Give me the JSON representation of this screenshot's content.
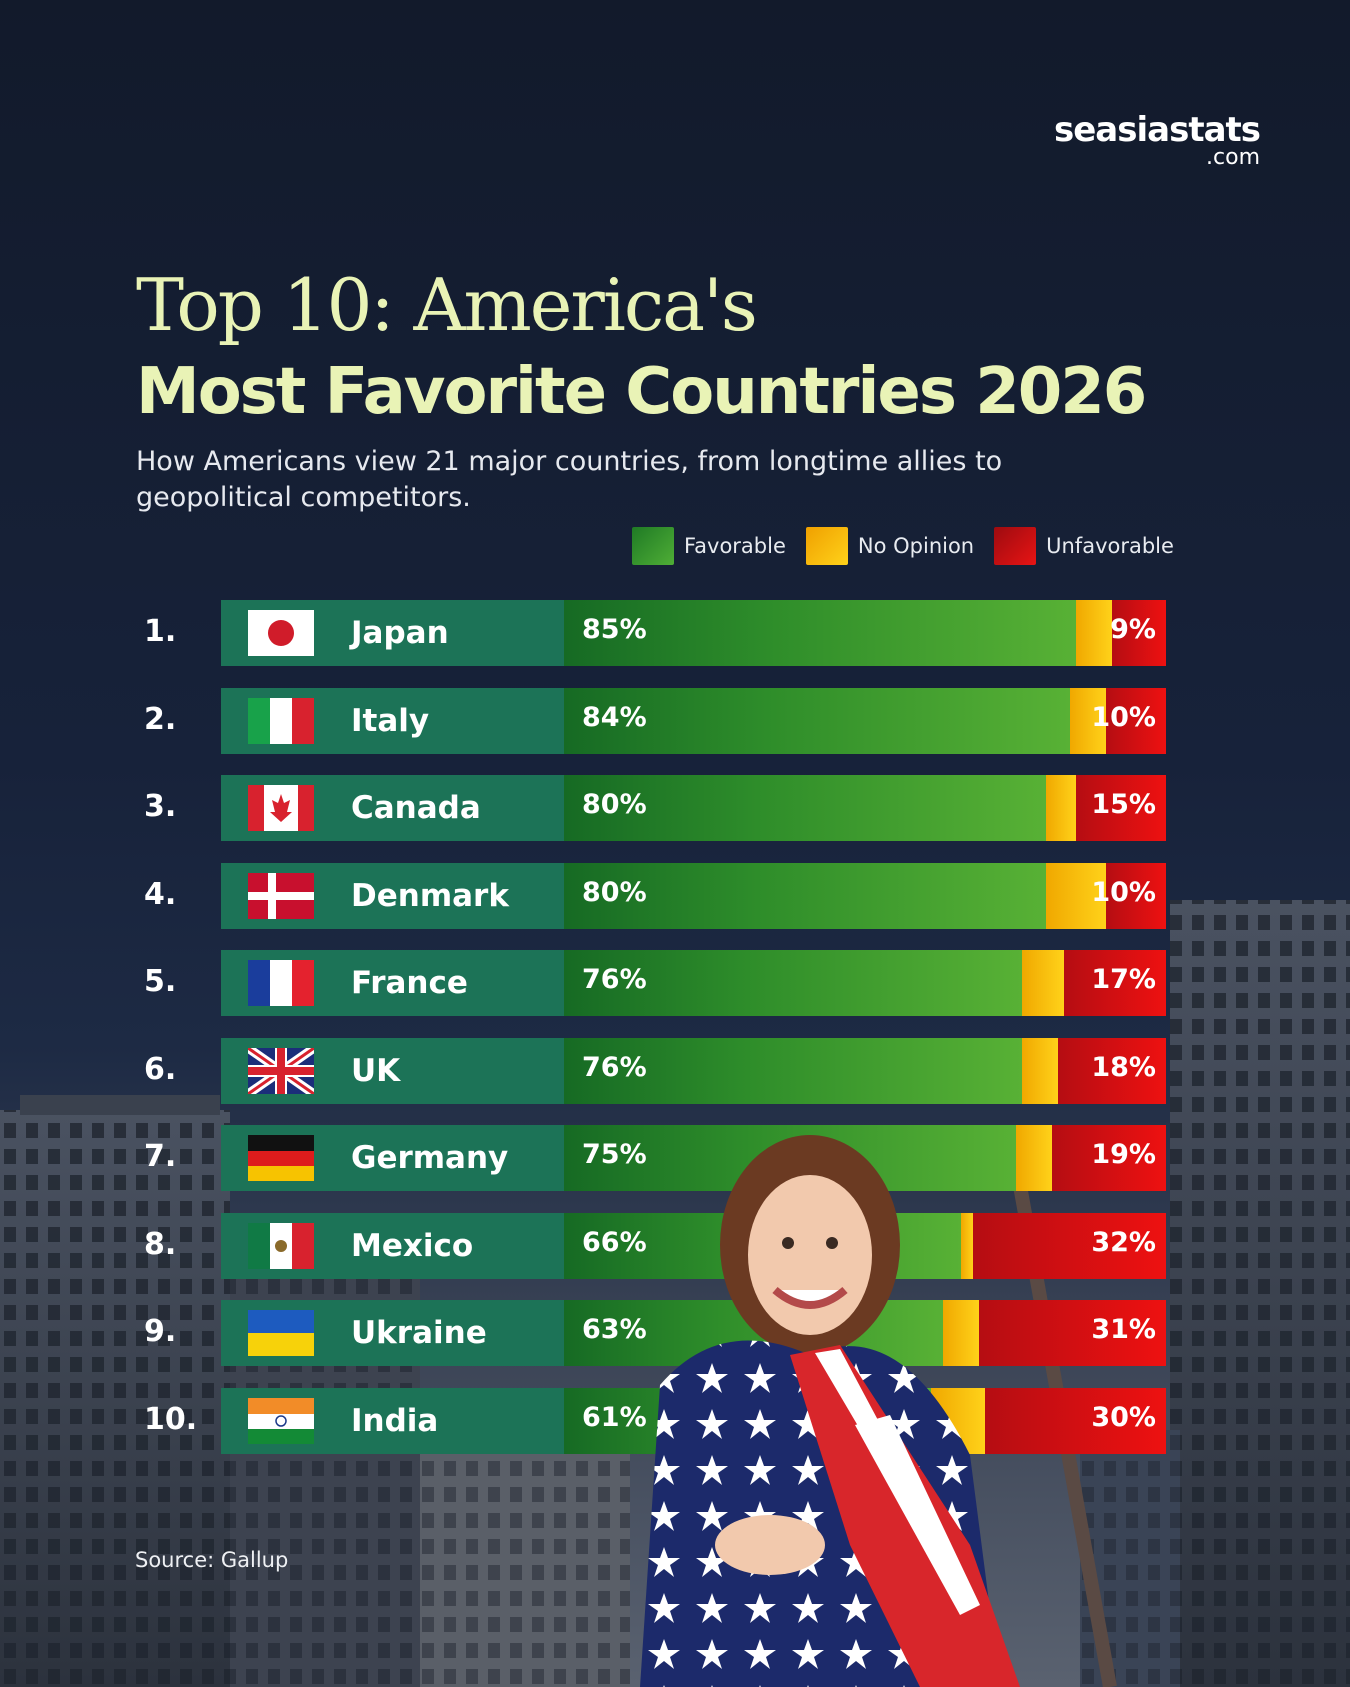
{
  "brand": {
    "line1": "seasiastats",
    "line2": ".com"
  },
  "title_line1": "Top 10: America's",
  "title_line2": "Most Favorite Countries 2026",
  "subtitle": "How Americans view 21 major countries, from longtime allies to geopolitical competitors.",
  "legend": [
    {
      "label": "Favorable",
      "color": "#2f8f2b"
    },
    {
      "label": "No Opinion",
      "color": "#f5b700"
    },
    {
      "label": "Unfavorable",
      "color": "#d01212"
    }
  ],
  "source": "Source: Gallup",
  "chart_data": {
    "type": "bar",
    "orientation": "horizontal-stacked",
    "categories": [
      "Japan",
      "Italy",
      "Canada",
      "Denmark",
      "France",
      "UK",
      "Germany",
      "Mexico",
      "Ukraine",
      "India"
    ],
    "ranks": [
      "1.",
      "2.",
      "3.",
      "4.",
      "5.",
      "6.",
      "7.",
      "8.",
      "9.",
      "10."
    ],
    "series": [
      {
        "name": "Favorable",
        "values": [
          85,
          84,
          80,
          80,
          76,
          76,
          75,
          66,
          63,
          61
        ]
      },
      {
        "name": "No Opinion",
        "values": [
          6,
          6,
          5,
          10,
          7,
          6,
          6,
          2,
          6,
          9
        ]
      },
      {
        "name": "Unfavorable",
        "values": [
          9,
          10,
          15,
          10,
          17,
          18,
          19,
          32,
          31,
          30
        ]
      }
    ],
    "favorable_labels": [
      "85%",
      "84%",
      "80%",
      "80%",
      "76%",
      "76%",
      "75%",
      "66%",
      "63%",
      "61%"
    ],
    "unfavorable_labels": [
      "9%",
      "10%",
      "15%",
      "10%",
      "17%",
      "18%",
      "19%",
      "32%",
      "31%",
      "30%"
    ],
    "flags": [
      "japan-flag",
      "italy-flag",
      "canada-flag",
      "denmark-flag",
      "france-flag",
      "uk-flag",
      "germany-flag",
      "mexico-flag",
      "ukraine-flag",
      "india-flag"
    ]
  }
}
